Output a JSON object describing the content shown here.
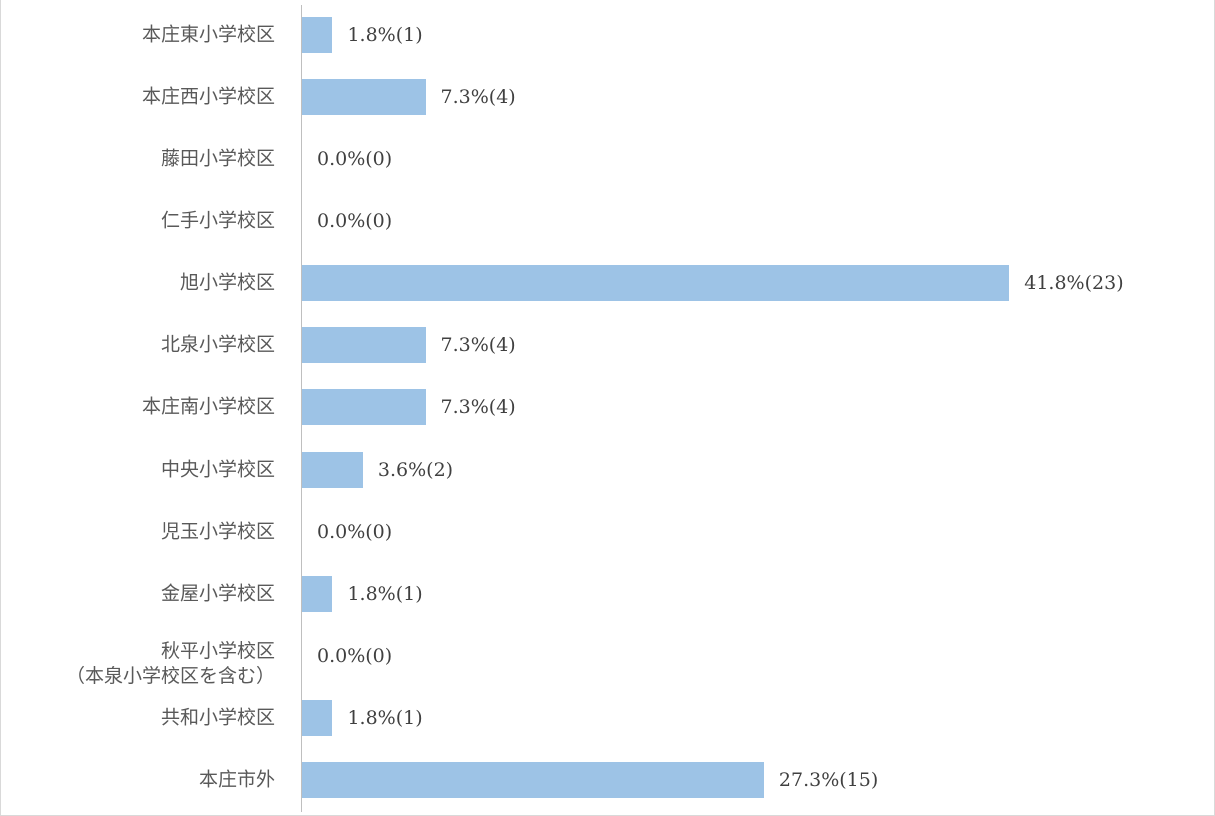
{
  "chart_data": {
    "type": "bar",
    "orientation": "horizontal",
    "color": "#9dc3e6",
    "categories": [
      "本庄東小学校区",
      "本庄西小学校区",
      "藤田小学校区",
      "仁手小学校区",
      "旭小学校区",
      "北泉小学校区",
      "本庄南小学校区",
      "中央小学校区",
      "児玉小学校区",
      "金屋小学校区",
      "秋平小学校区\n（本泉小学校区を含む）",
      "共和小学校区",
      "本庄市外"
    ],
    "values": [
      1.8,
      7.3,
      0.0,
      0.0,
      41.8,
      7.3,
      7.3,
      3.6,
      0.0,
      1.8,
      0.0,
      1.8,
      27.3
    ],
    "value_labels": [
      "1.8%(1)",
      "7.3%(4)",
      "0.0%(0)",
      "0.0%(0)",
      "41.8%(23)",
      "7.3%(4)",
      "7.3%(4)",
      "3.6%(2)",
      "0.0%(0)",
      "1.8%(1)",
      "0.0%(0)",
      "1.8%(1)",
      "27.3%(15)"
    ]
  }
}
